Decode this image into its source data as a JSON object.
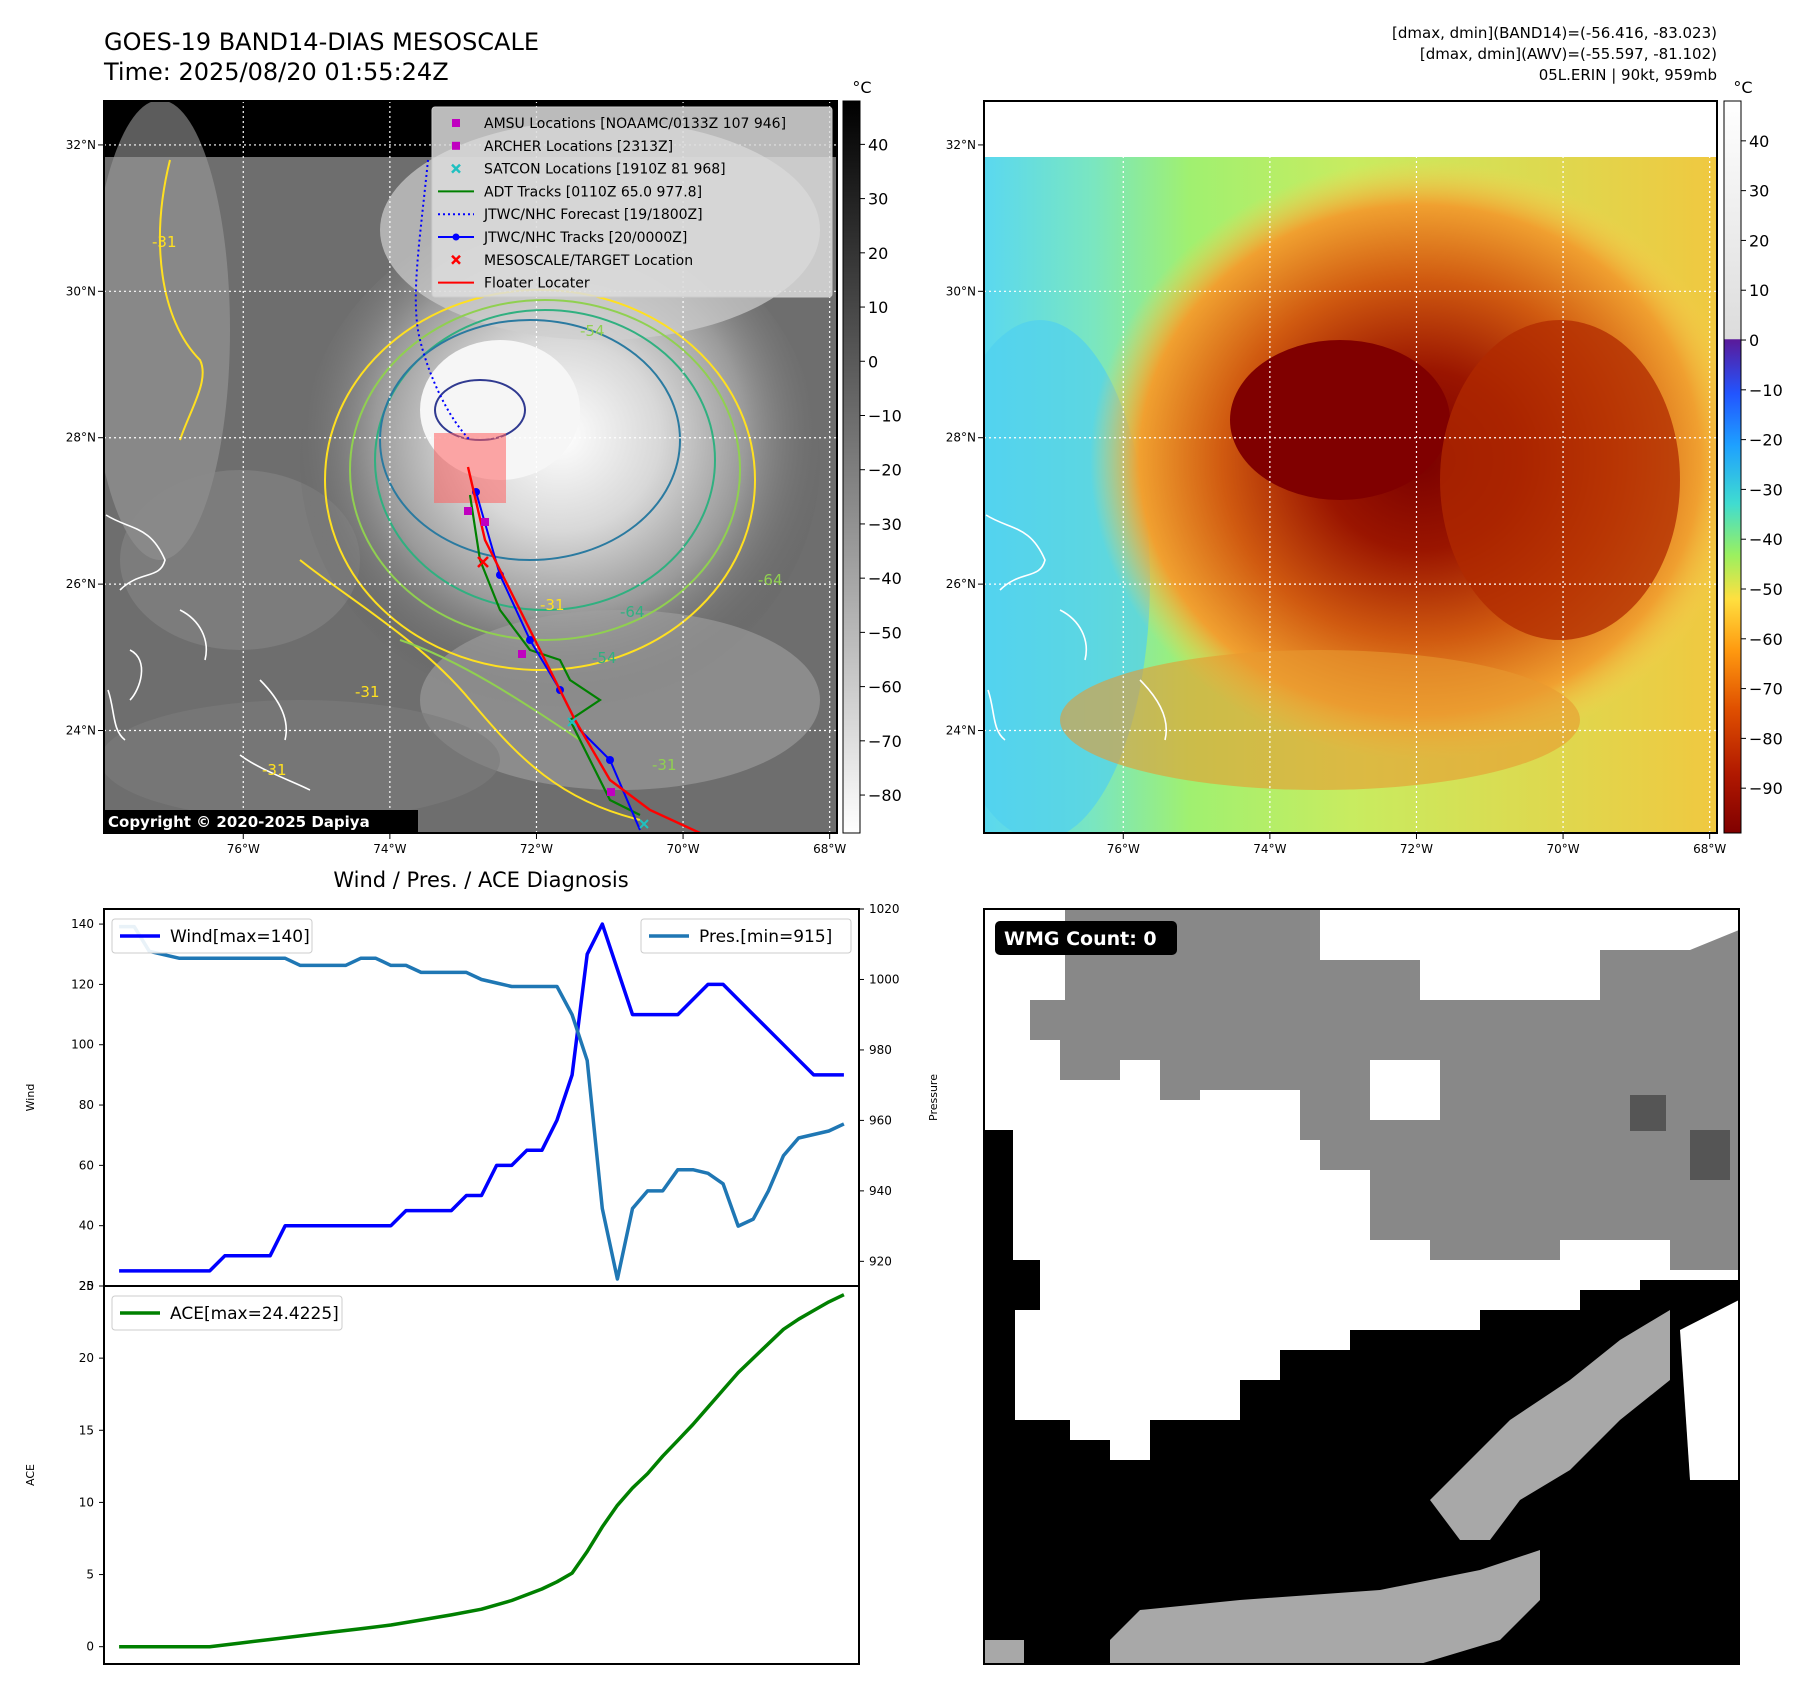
{
  "header": {
    "title_line1": "GOES-19 BAND14-DIAS MESOSCALE",
    "title_line2": "Time: 2025/08/20 01:55:24Z",
    "info_line1": "[dmax, dmin](BAND14)=(-56.416, -83.023)",
    "info_line2": "[dmax, dmin](AWV)=(-55.597, -81.102)",
    "info_line3": "05L.ERIN | 90kt, 959mb"
  },
  "map_axes": {
    "lat_labels": [
      "32°N",
      "30°N",
      "28°N",
      "26°N",
      "24°N"
    ],
    "lon_labels": [
      "76°W",
      "74°W",
      "72°W",
      "70°W",
      "68°W"
    ],
    "lat_values": [
      32,
      30,
      28,
      26,
      24
    ],
    "lon_values": [
      -76,
      -74,
      -72,
      -70,
      -68
    ],
    "lat_range": [
      22.6,
      32.6
    ],
    "lon_range": [
      -77.9,
      -67.9
    ]
  },
  "panel_ir": {
    "colorbar_unit": "°C",
    "colorbar_ticks": [
      "40",
      "30",
      "20",
      "10",
      "0",
      "−10",
      "−20",
      "−30",
      "−40",
      "−50",
      "−60",
      "−70",
      "−80"
    ],
    "colorbar_range": [
      48,
      -87
    ],
    "copyright": "Copyright © 2020-2025 Dapiya",
    "contour_labels": [
      "-31",
      "-31",
      "-31",
      "-31",
      "-54",
      "-54",
      "-64",
      "-64",
      "-31"
    ],
    "legend": [
      {
        "label": "AMSU Locations [NOAAMC/0133Z 107 946]",
        "marker": "square",
        "color": "#c000c0"
      },
      {
        "label": "ARCHER Locations [2313Z]",
        "marker": "square",
        "color": "#c000c0"
      },
      {
        "label": "SATCON Locations [1910Z 81 968]",
        "marker": "x",
        "color": "#20c0c0"
      },
      {
        "label": "ADT Tracks [0110Z 65.0 977.8]",
        "marker": "line",
        "color": "#008000"
      },
      {
        "label": "JTWC/NHC Forecast [19/1800Z]",
        "marker": "dotted",
        "color": "#0000ff"
      },
      {
        "label": "JTWC/NHC Tracks [20/0000Z]",
        "marker": "line-dot",
        "color": "#0000ff"
      },
      {
        "label": "MESOSCALE/TARGET Location",
        "marker": "x",
        "color": "#ff0000"
      },
      {
        "label": "Floater Locater",
        "marker": "line",
        "color": "#ff0000"
      }
    ]
  },
  "panel_awv": {
    "colorbar_unit": "°C",
    "colorbar_ticks": [
      "40",
      "30",
      "20",
      "10",
      "0",
      "−10",
      "−20",
      "−30",
      "−40",
      "−50",
      "−60",
      "−70",
      "−80",
      "−90"
    ],
    "colorbar_range": [
      48,
      -99
    ]
  },
  "panel_wmg": {
    "badge": "WMG Count: 0"
  },
  "chart_data": [
    {
      "type": "line",
      "title": "Wind / Pres. / ACE Diagnosis",
      "ylabel": "Wind",
      "ylim": [
        20,
        145
      ],
      "y2label": "Pressure",
      "y2lim": [
        913,
        1020
      ],
      "xlim": [
        -1,
        49
      ],
      "yticks": [
        "20",
        "40",
        "60",
        "80",
        "100",
        "120",
        "140"
      ],
      "y2ticks": [
        "920",
        "940",
        "960",
        "980",
        "1000",
        "1020"
      ],
      "series": [
        {
          "name": "Wind[max=140]",
          "color": "#0000ff",
          "x": [
            0,
            1,
            2,
            3,
            4,
            5,
            6,
            7,
            8,
            9,
            10,
            11,
            12,
            13,
            14,
            15,
            16,
            17,
            18,
            19,
            20,
            21,
            22,
            23,
            24,
            25,
            26,
            27,
            28,
            29,
            30,
            31,
            32,
            33,
            34,
            35,
            36,
            37,
            38,
            39,
            40,
            41,
            42,
            43,
            44,
            45,
            46,
            47,
            48
          ],
          "values": [
            25,
            25,
            25,
            25,
            25,
            25,
            25,
            30,
            30,
            30,
            30,
            40,
            40,
            40,
            40,
            40,
            40,
            40,
            40,
            45,
            45,
            45,
            45,
            50,
            50,
            60,
            60,
            65,
            65,
            75,
            90,
            130,
            140,
            125,
            110,
            110,
            110,
            110,
            115,
            120,
            120,
            115,
            110,
            105,
            100,
            95,
            90,
            90,
            90
          ]
        },
        {
          "name": "Pres.[min=915]",
          "color": "#1f77b4",
          "axis": "right",
          "x": [
            0,
            1,
            2,
            3,
            4,
            5,
            6,
            7,
            8,
            9,
            10,
            11,
            12,
            13,
            14,
            15,
            16,
            17,
            18,
            19,
            20,
            21,
            22,
            23,
            24,
            25,
            26,
            27,
            28,
            29,
            30,
            31,
            32,
            33,
            34,
            35,
            36,
            37,
            38,
            39,
            40,
            41,
            42,
            43,
            44,
            45,
            46,
            47,
            48
          ],
          "values": [
            1015,
            1015,
            1008,
            1007,
            1006,
            1006,
            1006,
            1006,
            1006,
            1006,
            1006,
            1006,
            1004,
            1004,
            1004,
            1004,
            1006,
            1006,
            1004,
            1004,
            1002,
            1002,
            1002,
            1002,
            1000,
            999,
            998,
            998,
            998,
            998,
            990,
            977,
            935,
            915,
            935,
            940,
            940,
            946,
            946,
            945,
            942,
            930,
            932,
            940,
            950,
            955,
            956,
            957,
            959
          ]
        }
      ]
    },
    {
      "type": "line",
      "ylabel": "ACE",
      "ylim": [
        -1.2,
        25
      ],
      "xlim": [
        -1,
        49
      ],
      "yticks": [
        "0",
        "5",
        "10",
        "15",
        "20",
        "25"
      ],
      "series": [
        {
          "name": "ACE[max=24.4225]",
          "color": "#008000",
          "x": [
            0,
            6,
            8,
            10,
            12,
            14,
            16,
            18,
            20,
            22,
            24,
            26,
            27,
            28,
            29,
            30,
            31,
            32,
            33,
            34,
            35,
            36,
            37,
            38,
            39,
            40,
            41,
            42,
            43,
            44,
            45,
            46,
            47,
            48
          ],
          "values": [
            0,
            0,
            0.25,
            0.5,
            0.75,
            1.0,
            1.25,
            1.5,
            1.85,
            2.2,
            2.6,
            3.2,
            3.6,
            4.0,
            4.5,
            5.1,
            6.6,
            8.3,
            9.8,
            11.0,
            12.0,
            13.2,
            14.3,
            15.4,
            16.6,
            17.8,
            19.0,
            20.0,
            21.0,
            22.0,
            22.7,
            23.3,
            23.9,
            24.4
          ]
        }
      ]
    }
  ]
}
